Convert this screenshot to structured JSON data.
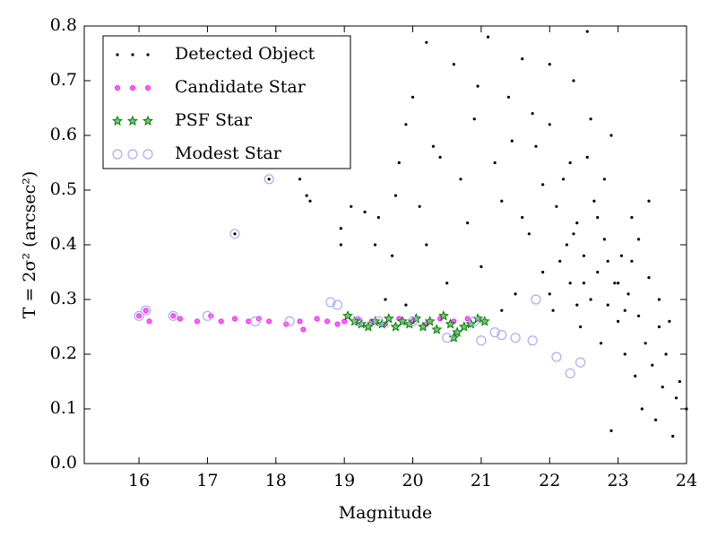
{
  "chart_data": {
    "type": "scatter",
    "xlabel": "Magnitude",
    "ylabel": "T = 2σ² (arcsec²)",
    "xlim": [
      15.2,
      24
    ],
    "ylim": [
      0,
      0.8
    ],
    "xticks": [
      16,
      17,
      18,
      19,
      20,
      21,
      22,
      23,
      24
    ],
    "yticks": [
      {
        "value": 0,
        "label": "0.0"
      },
      0.1,
      0.2,
      0.3,
      0.4,
      0.5,
      0.6,
      0.7,
      0.8
    ],
    "legend": "upper left",
    "series": [
      {
        "name": "Detected Object",
        "color": "#000000",
        "marker": "dot",
        "x": [
          17.9,
          17.4,
          18.35,
          18.45,
          18.5,
          18.95,
          18.95,
          19.1,
          19.3,
          19.5,
          19.45,
          19.7,
          19.6,
          19.8,
          19.9,
          20.0,
          20.1,
          20.2,
          20.3,
          20.5,
          20.6,
          20.7,
          20.8,
          20.9,
          21.0,
          21.1,
          21.2,
          21.3,
          21.4,
          21.5,
          21.6,
          21.7,
          21.8,
          21.9,
          22.0,
          22.05,
          22.1,
          22.2,
          22.25,
          22.3,
          22.35,
          22.4,
          22.45,
          22.5,
          22.55,
          22.6,
          22.65,
          22.7,
          22.75,
          22.8,
          22.85,
          22.9,
          22.95,
          23.0,
          23.05,
          23.1,
          23.15,
          23.2,
          23.25,
          23.3,
          23.35,
          23.4,
          23.45,
          23.5,
          23.55,
          23.6,
          23.65,
          23.7,
          23.8,
          23.85,
          23.9,
          24.0,
          22.9,
          22.0,
          21.75,
          22.55,
          21.3,
          20.4,
          19.9,
          22.15,
          22.35,
          22.5,
          22.7,
          22.85,
          23.0,
          23.1,
          23.2,
          21.9,
          22.3,
          22.6,
          21.6,
          21.45,
          20.95,
          20.2,
          19.75,
          22.8,
          23.3,
          23.6,
          23.75,
          22.4,
          22.0,
          23.45
        ],
        "values": [
          0.52,
          0.42,
          0.52,
          0.49,
          0.48,
          0.43,
          0.4,
          0.47,
          0.46,
          0.45,
          0.4,
          0.38,
          0.3,
          0.55,
          0.62,
          0.67,
          0.47,
          0.4,
          0.58,
          0.33,
          0.73,
          0.52,
          0.44,
          0.63,
          0.36,
          0.78,
          0.55,
          0.48,
          0.67,
          0.31,
          0.74,
          0.42,
          0.58,
          0.35,
          0.62,
          0.28,
          0.47,
          0.52,
          0.4,
          0.33,
          0.7,
          0.44,
          0.25,
          0.38,
          0.56,
          0.3,
          0.48,
          0.35,
          0.22,
          0.41,
          0.29,
          0.6,
          0.33,
          0.26,
          0.38,
          0.2,
          0.31,
          0.45,
          0.16,
          0.27,
          0.1,
          0.22,
          0.34,
          0.18,
          0.08,
          0.25,
          0.14,
          0.2,
          0.05,
          0.12,
          0.15,
          0.1,
          0.06,
          0.73,
          0.64,
          0.79,
          0.28,
          0.56,
          0.29,
          0.37,
          0.42,
          0.33,
          0.45,
          0.37,
          0.33,
          0.28,
          0.37,
          0.51,
          0.55,
          0.63,
          0.45,
          0.59,
          0.69,
          0.77,
          0.49,
          0.52,
          0.41,
          0.3,
          0.26,
          0.29,
          0.31,
          0.48
        ]
      },
      {
        "name": "Candidate Star",
        "color": "#ff00ff",
        "marker": "circle",
        "x": [
          16.0,
          16.1,
          16.15,
          16.5,
          16.6,
          16.85,
          17.05,
          17.2,
          17.4,
          17.6,
          17.75,
          17.9,
          18.15,
          18.35,
          18.4,
          18.6,
          18.75,
          18.9,
          19.0,
          19.2,
          19.4,
          19.6,
          19.8,
          20.0,
          20.2,
          20.4,
          20.6,
          20.8
        ],
        "values": [
          0.27,
          0.28,
          0.26,
          0.27,
          0.265,
          0.26,
          0.27,
          0.26,
          0.265,
          0.26,
          0.265,
          0.26,
          0.255,
          0.26,
          0.245,
          0.265,
          0.26,
          0.255,
          0.26,
          0.265,
          0.26,
          0.255,
          0.265,
          0.26,
          0.255,
          0.265,
          0.26,
          0.265
        ]
      },
      {
        "name": "PSF Star",
        "color": "#008000",
        "marker": "star",
        "x": [
          19.05,
          19.15,
          19.25,
          19.35,
          19.45,
          19.55,
          19.65,
          19.75,
          19.85,
          19.95,
          20.05,
          20.15,
          20.25,
          20.35,
          20.45,
          20.55,
          20.65,
          20.75,
          20.85,
          20.95,
          21.05,
          20.6
        ],
        "values": [
          0.27,
          0.26,
          0.255,
          0.25,
          0.26,
          0.255,
          0.265,
          0.25,
          0.26,
          0.255,
          0.265,
          0.25,
          0.26,
          0.245,
          0.27,
          0.255,
          0.24,
          0.25,
          0.255,
          0.265,
          0.26,
          0.23
        ]
      },
      {
        "name": "Modest Star",
        "color": "#aaaaff",
        "marker": "ring",
        "x": [
          16.0,
          16.1,
          16.5,
          17.0,
          17.4,
          17.9,
          18.2,
          18.8,
          18.9,
          19.5,
          20.0,
          20.5,
          21.0,
          21.2,
          21.3,
          21.5,
          21.75,
          22.1,
          22.3,
          22.45,
          21.8,
          20.9,
          19.2,
          17.7
        ],
        "values": [
          0.27,
          0.28,
          0.27,
          0.27,
          0.42,
          0.52,
          0.26,
          0.295,
          0.29,
          0.26,
          0.26,
          0.23,
          0.225,
          0.24,
          0.235,
          0.23,
          0.225,
          0.195,
          0.165,
          0.185,
          0.3,
          0.26,
          0.26,
          0.26
        ]
      }
    ]
  }
}
